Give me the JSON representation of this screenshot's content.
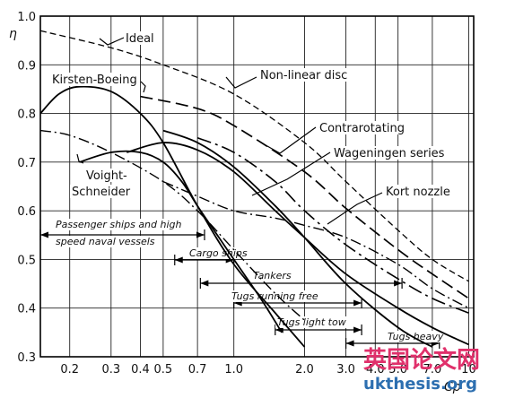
{
  "chart_data": {
    "type": "line",
    "title": "",
    "ylabel": "η",
    "xlabel": "Cp",
    "x_scale": "log",
    "xlim": [
      0.15,
      10.5
    ],
    "ylim": [
      0.3,
      1.0
    ],
    "grid": true,
    "x_ticks": [
      {
        "value": 0.2,
        "label": "0.2"
      },
      {
        "value": 0.3,
        "label": "0.3"
      },
      {
        "value": 0.4,
        "label": "0.4"
      },
      {
        "value": 0.5,
        "label": "0.5"
      },
      {
        "value": 0.7,
        "label": "0.7"
      },
      {
        "value": 1.0,
        "label": "1.0"
      },
      {
        "value": 2.0,
        "label": "2.0"
      },
      {
        "value": 3.0,
        "label": "3.0"
      },
      {
        "value": 4.0,
        "label": "4.0"
      },
      {
        "value": 5.0,
        "label": "5.0"
      },
      {
        "value": 7.0,
        "label": "7.0"
      },
      {
        "value": 10.0,
        "label": "10"
      }
    ],
    "y_ticks": [
      {
        "value": 1.0,
        "label": "1.0"
      },
      {
        "value": 0.9,
        "label": "0.9"
      },
      {
        "value": 0.8,
        "label": "0.8"
      },
      {
        "value": 0.7,
        "label": "0.7"
      },
      {
        "value": 0.6,
        "label": "0.6"
      },
      {
        "value": 0.5,
        "label": "0.5"
      },
      {
        "value": 0.4,
        "label": "0.4"
      },
      {
        "value": 0.3,
        "label": "0.3"
      }
    ],
    "x_grid": [
      0.15,
      0.2,
      0.3,
      0.4,
      0.5,
      0.7,
      1.0,
      2.0,
      3.0,
      4.0,
      5.0,
      7.0,
      10.0
    ],
    "y_grid": [
      0.3,
      0.4,
      0.5,
      0.6,
      0.7,
      0.8,
      0.9,
      1.0
    ],
    "series": [
      {
        "name": "Ideal",
        "style": "dashed",
        "x": [
          0.15,
          0.3,
          0.5,
          1.0,
          2.0,
          3.0,
          5.0,
          7.0,
          10.0
        ],
        "y": [
          0.97,
          0.935,
          0.9,
          0.84,
          0.74,
          0.66,
          0.56,
          0.5,
          0.455
        ]
      },
      {
        "name": "Non-linear disc",
        "style": "dash-long",
        "x": [
          0.4,
          0.7,
          1.0,
          2.0,
          3.0,
          5.0,
          7.0,
          10.0
        ],
        "y": [
          0.835,
          0.81,
          0.775,
          0.68,
          0.605,
          0.52,
          0.47,
          0.42
        ]
      },
      {
        "name": "Kirsten-Boeing",
        "style": "solid",
        "x": [
          0.15,
          0.18,
          0.22,
          0.3,
          0.4,
          0.5,
          0.7,
          1.0,
          1.5,
          2.0
        ],
        "y": [
          0.8,
          0.84,
          0.855,
          0.845,
          0.8,
          0.74,
          0.61,
          0.49,
          0.39,
          0.32
        ]
      },
      {
        "name": "Contrarotating",
        "style": "dash-dot-long",
        "x": [
          0.7,
          1.0,
          1.5,
          2.0,
          3.0,
          5.0,
          7.0,
          10.0
        ],
        "y": [
          0.75,
          0.72,
          0.66,
          0.6,
          0.53,
          0.46,
          0.42,
          0.39
        ]
      },
      {
        "name": "Wageningen series",
        "style": "solid",
        "x": [
          0.35,
          0.5,
          0.7,
          1.0,
          1.5,
          2.0,
          3.0,
          5.0,
          7.0,
          10.0
        ],
        "y": [
          0.72,
          0.74,
          0.725,
          0.68,
          0.6,
          0.545,
          0.47,
          0.4,
          0.36,
          0.325
        ]
      },
      {
        "name": "Voight-Schneider",
        "style": "solid",
        "x": [
          0.22,
          0.3,
          0.4,
          0.5,
          0.6,
          0.7,
          0.85,
          1.0,
          1.3,
          1.6
        ],
        "y": [
          0.7,
          0.72,
          0.72,
          0.7,
          0.66,
          0.61,
          0.55,
          0.5,
          0.42,
          0.35
        ]
      },
      {
        "name": "",
        "style": "solid",
        "x": [
          0.5,
          0.7,
          1.0,
          1.5,
          2.0,
          3.0,
          5.0,
          7.0
        ],
        "y": [
          0.765,
          0.74,
          0.69,
          0.61,
          0.545,
          0.45,
          0.36,
          0.32
        ]
      },
      {
        "name": "",
        "style": "dash-dot",
        "x": [
          0.15,
          0.2,
          0.3,
          0.5,
          0.7,
          1.0,
          1.5,
          2.0
        ],
        "y": [
          0.765,
          0.755,
          0.72,
          0.66,
          0.6,
          0.52,
          0.43,
          0.375
        ]
      },
      {
        "name": "Kort nozzle",
        "style": "dash-dot",
        "x": [
          0.5,
          0.7,
          1.0,
          1.5,
          2.0,
          3.0,
          5.0,
          7.0,
          10.0
        ],
        "y": [
          0.66,
          0.63,
          0.6,
          0.585,
          0.57,
          0.545,
          0.49,
          0.44,
          0.4
        ]
      }
    ],
    "series_labels": [
      {
        "text": "Ideal"
      },
      {
        "text": "Non-linear disc"
      },
      {
        "text": "Kirsten-Boeing"
      },
      {
        "text": "Contrarotating"
      },
      {
        "text": "Wageningen series"
      },
      {
        "text": "Voight-"
      },
      {
        "text": "Schneider"
      },
      {
        "text": "Kort nozzle"
      }
    ],
    "bands": [
      {
        "label_lines": [
          "Passenger ships and high",
          "speed naval vessels"
        ],
        "x_start": 0.15,
        "x_end": 0.75
      },
      {
        "label_lines": [
          "Cargo ships"
        ],
        "x_start": 0.56,
        "x_end": 1.0
      },
      {
        "label_lines": [
          "Tankers"
        ],
        "x_start": 0.72,
        "x_end": 5.2
      },
      {
        "label_lines": [
          "Tugs running free"
        ],
        "x_start": 1.0,
        "x_end": 3.5
      },
      {
        "label_lines": [
          "Tugs light tow"
        ],
        "x_start": 1.5,
        "x_end": 3.5
      },
      {
        "label_lines": [
          "Tugs heavy"
        ],
        "x_start": 3.0,
        "x_end": 7.5
      }
    ],
    "watermark": {
      "line1": "英国论文网",
      "line2": "ukthesis.org"
    }
  }
}
